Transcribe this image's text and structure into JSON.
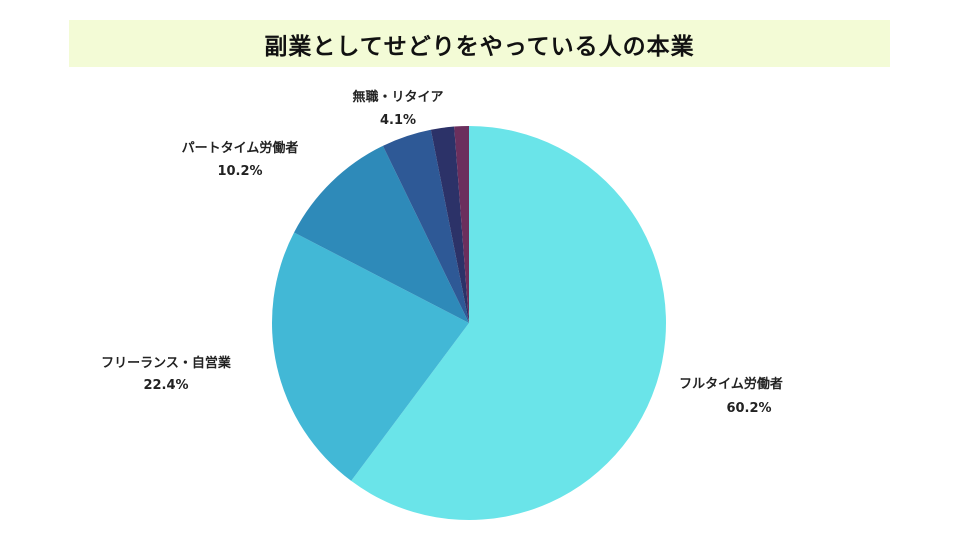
{
  "chart_data": {
    "type": "pie",
    "title": "副業としてせどりをやっている人の本業",
    "slices": [
      {
        "label": "フルタイム労働者",
        "value": 60.2,
        "value_label": "60.2%",
        "color": "#6ae4e9"
      },
      {
        "label": "フリーランス・自営業",
        "value": 22.4,
        "value_label": "22.4%",
        "color": "#42b8d6"
      },
      {
        "label": "パートタイム労働者",
        "value": 10.2,
        "value_label": "10.2%",
        "color": "#2e8ab9"
      },
      {
        "label": "無職・リタイア",
        "value": 4.1,
        "value_label": "4.1%",
        "color": "#2e5996"
      },
      {
        "label": "",
        "value": 1.9,
        "value_label": "",
        "color": "#2c3268"
      },
      {
        "label": "",
        "value": 1.2,
        "value_label": "",
        "color": "#6b2f5d"
      }
    ],
    "start": "12 o'clock",
    "direction": "clockwise"
  }
}
